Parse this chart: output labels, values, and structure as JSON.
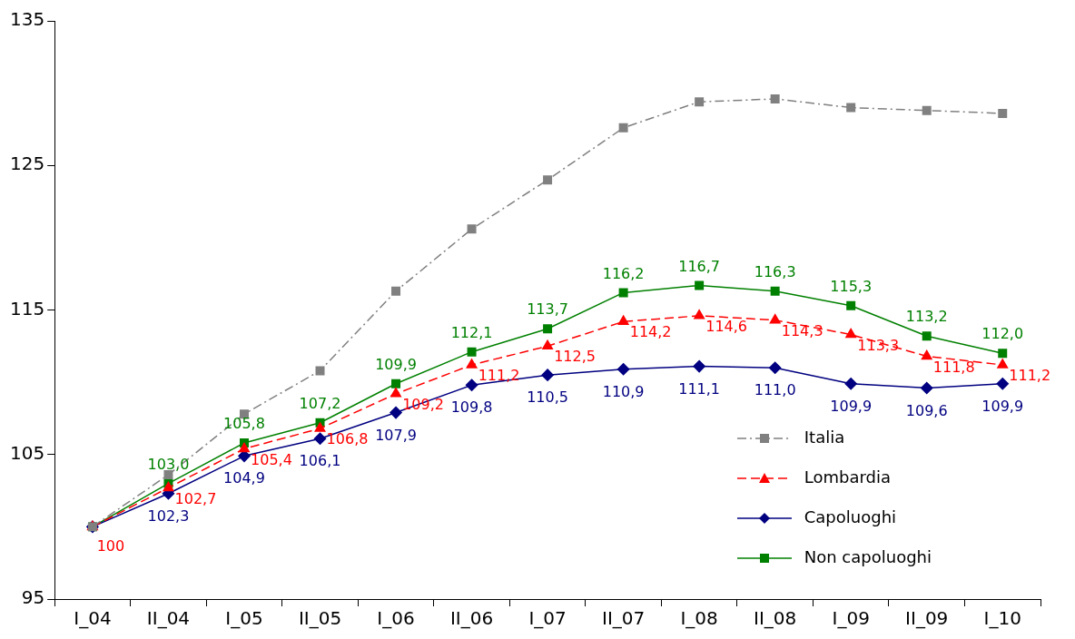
{
  "chart_data": {
    "type": "line",
    "categories": [
      "I_04",
      "II_04",
      "I_05",
      "II_05",
      "I_06",
      "II_06",
      "I_07",
      "II_07",
      "I_08",
      "II_08",
      "I_09",
      "II_09",
      "I_10"
    ],
    "series": [
      {
        "name": "Italia",
        "color": "#808080",
        "marker": "square",
        "line_style": "dashdot",
        "values": [
          100,
          103.6,
          107.8,
          110.8,
          116.3,
          120.6,
          124.0,
          127.6,
          129.4,
          129.6,
          129.0,
          128.8,
          128.6
        ]
      },
      {
        "name": "Lombardia",
        "color": "#ff0000",
        "marker": "triangle",
        "line_style": "dashed",
        "values": [
          100,
          102.7,
          105.4,
          106.8,
          109.2,
          111.2,
          112.5,
          114.2,
          114.6,
          114.3,
          113.3,
          111.8,
          111.2
        ],
        "value_labels": [
          "100",
          "102,7",
          "105,4",
          "106,8",
          "109,2",
          "111,2",
          "112,5",
          "114,2",
          "114,6",
          "114,3",
          "113,3",
          "111,8",
          "111,2"
        ]
      },
      {
        "name": "Capoluoghi",
        "color": "#000080",
        "marker": "diamond",
        "line_style": "solid",
        "values": [
          100,
          102.3,
          104.9,
          106.1,
          107.9,
          109.8,
          110.5,
          110.9,
          111.1,
          111.0,
          109.9,
          109.6,
          109.9
        ],
        "value_labels": [
          null,
          "102,3",
          "104,9",
          "106,1",
          "107,9",
          "109,8",
          "110,5",
          "110,9",
          "111,1",
          "111,0",
          "109,9",
          "109,6",
          "109,9"
        ]
      },
      {
        "name": "Non capoluoghi",
        "color": "#008000",
        "marker": "square",
        "line_style": "solid",
        "values": [
          100,
          103.0,
          105.8,
          107.2,
          109.9,
          112.1,
          113.7,
          116.2,
          116.7,
          116.3,
          115.3,
          113.2,
          112.0
        ],
        "value_labels": [
          null,
          "103,0",
          "105,8",
          "107,2",
          "109,9",
          "112,1",
          "113,7",
          "116,2",
          "116,7",
          "116,3",
          "115,3",
          "113,2",
          "112,0"
        ]
      }
    ],
    "ylim": [
      95,
      135
    ],
    "yticks": [
      95,
      105,
      115,
      125,
      135
    ],
    "grid": false,
    "legend": "bottom right"
  }
}
